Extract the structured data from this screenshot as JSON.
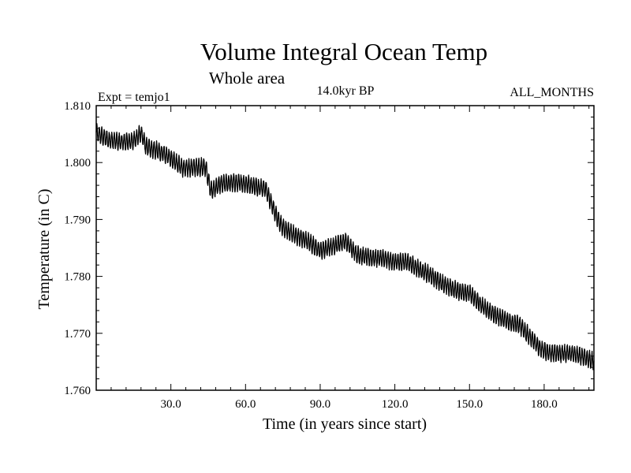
{
  "chart_data": {
    "type": "line",
    "title": "Volume Integral Ocean Temp",
    "subtitle": "Whole area",
    "experiment_label": "Expt = temjo1",
    "period_label": "14.0kyr BP",
    "months_label": "ALL_MONTHS",
    "xlabel": "Time (in years since start)",
    "ylabel": "Temperature (in C)",
    "xlim": [
      0,
      200
    ],
    "ylim": [
      1.76,
      1.81
    ],
    "x_ticks": [
      30,
      60,
      90,
      120,
      150,
      180
    ],
    "x_tick_labels": [
      "30.0",
      "60.0",
      "90.0",
      "120.0",
      "150.0",
      "180.0"
    ],
    "y_ticks": [
      1.76,
      1.77,
      1.78,
      1.79,
      1.8,
      1.81
    ],
    "y_tick_labels": [
      "1.760",
      "1.770",
      "1.780",
      "1.790",
      "1.800",
      "1.810"
    ],
    "grid": false,
    "series": [
      {
        "name": "Volume integral ocean temperature",
        "color": "#000000",
        "seasonal_amplitude": 0.0014,
        "trend_x": [
          0,
          5,
          10,
          15,
          18,
          20,
          25,
          30,
          35,
          40,
          44,
          46,
          50,
          55,
          60,
          65,
          68,
          72,
          75,
          80,
          85,
          90,
          95,
          100,
          105,
          110,
          115,
          120,
          125,
          130,
          135,
          140,
          145,
          150,
          155,
          160,
          165,
          170,
          175,
          178,
          182,
          186,
          190,
          195,
          200
        ],
        "trend_y": [
          1.8052,
          1.804,
          1.8036,
          1.8038,
          1.8052,
          1.8028,
          1.802,
          1.8008,
          1.799,
          1.7992,
          1.7992,
          1.795,
          1.7962,
          1.7965,
          1.7963,
          1.7957,
          1.7955,
          1.791,
          1.7885,
          1.7872,
          1.7862,
          1.7845,
          1.7853,
          1.7862,
          1.7838,
          1.7833,
          1.7832,
          1.7825,
          1.7826,
          1.7812,
          1.78,
          1.7785,
          1.7775,
          1.777,
          1.7748,
          1.7733,
          1.7722,
          1.7715,
          1.769,
          1.7675,
          1.7665,
          1.7665,
          1.7665,
          1.766,
          1.765
        ]
      }
    ]
  }
}
